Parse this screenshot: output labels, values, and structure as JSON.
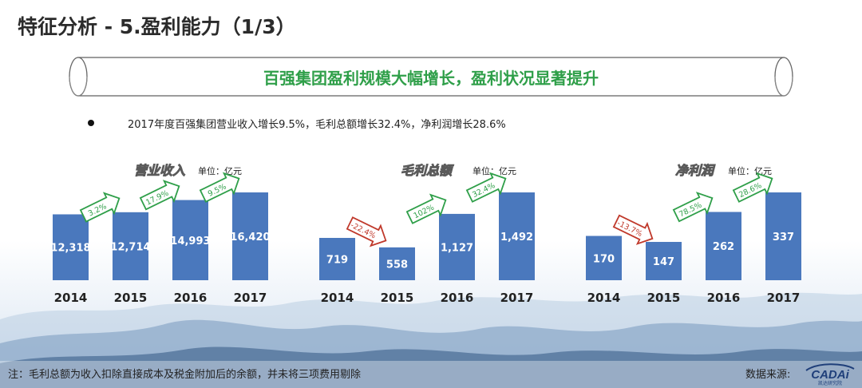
{
  "title": "特征分析 - 5.盈利能力（1/3）",
  "banner": {
    "text": "百强集团盈利规模大幅增长，盈利状况显著提升"
  },
  "bullet": {
    "text": "2017年度百强集团营业收入增长9.5%，毛利总额增长32.4%，净利润增长28.6%"
  },
  "footnote": "注：毛利总额为收入扣除直接成本及税金附加后的余额，并未将三项费用剔除",
  "source_label": "数据来源:",
  "logo": {
    "text": "CADAi",
    "subtext": "凯达研究院"
  },
  "colors": {
    "bar": "#4a78bd",
    "up": "#2f9f49",
    "down": "#c0392b",
    "banner_text": "#2f9f49"
  },
  "chart_data": [
    {
      "type": "bar",
      "title": "营业收入",
      "unit": "单位：亿元",
      "categories": [
        "2014",
        "2015",
        "2016",
        "2017"
      ],
      "values": [
        12318,
        12714,
        14993,
        16420
      ],
      "value_labels": [
        "12,318",
        "12,714",
        "14,993",
        "16,420"
      ],
      "growth": [
        {
          "label": "3.2%",
          "direction": "up"
        },
        {
          "label": "17.9%",
          "direction": "up"
        },
        {
          "label": "9.5%",
          "direction": "up"
        }
      ]
    },
    {
      "type": "bar",
      "title": "毛利总额",
      "unit": "单位：亿元",
      "categories": [
        "2014",
        "2015",
        "2016",
        "2017"
      ],
      "values": [
        719,
        558,
        1127,
        1492
      ],
      "value_labels": [
        "719",
        "558",
        "1,127",
        "1,492"
      ],
      "growth": [
        {
          "label": "-22.4%",
          "direction": "down"
        },
        {
          "label": "102%",
          "direction": "up"
        },
        {
          "label": "32.4%",
          "direction": "up"
        }
      ]
    },
    {
      "type": "bar",
      "title": "净利润",
      "unit": "单位：亿元",
      "categories": [
        "2014",
        "2015",
        "2016",
        "2017"
      ],
      "values": [
        170,
        147,
        262,
        337
      ],
      "value_labels": [
        "170",
        "147",
        "262",
        "337"
      ],
      "growth": [
        {
          "label": "-13.7%",
          "direction": "down"
        },
        {
          "label": "78.5%",
          "direction": "up"
        },
        {
          "label": "28.6%",
          "direction": "up"
        }
      ]
    }
  ]
}
